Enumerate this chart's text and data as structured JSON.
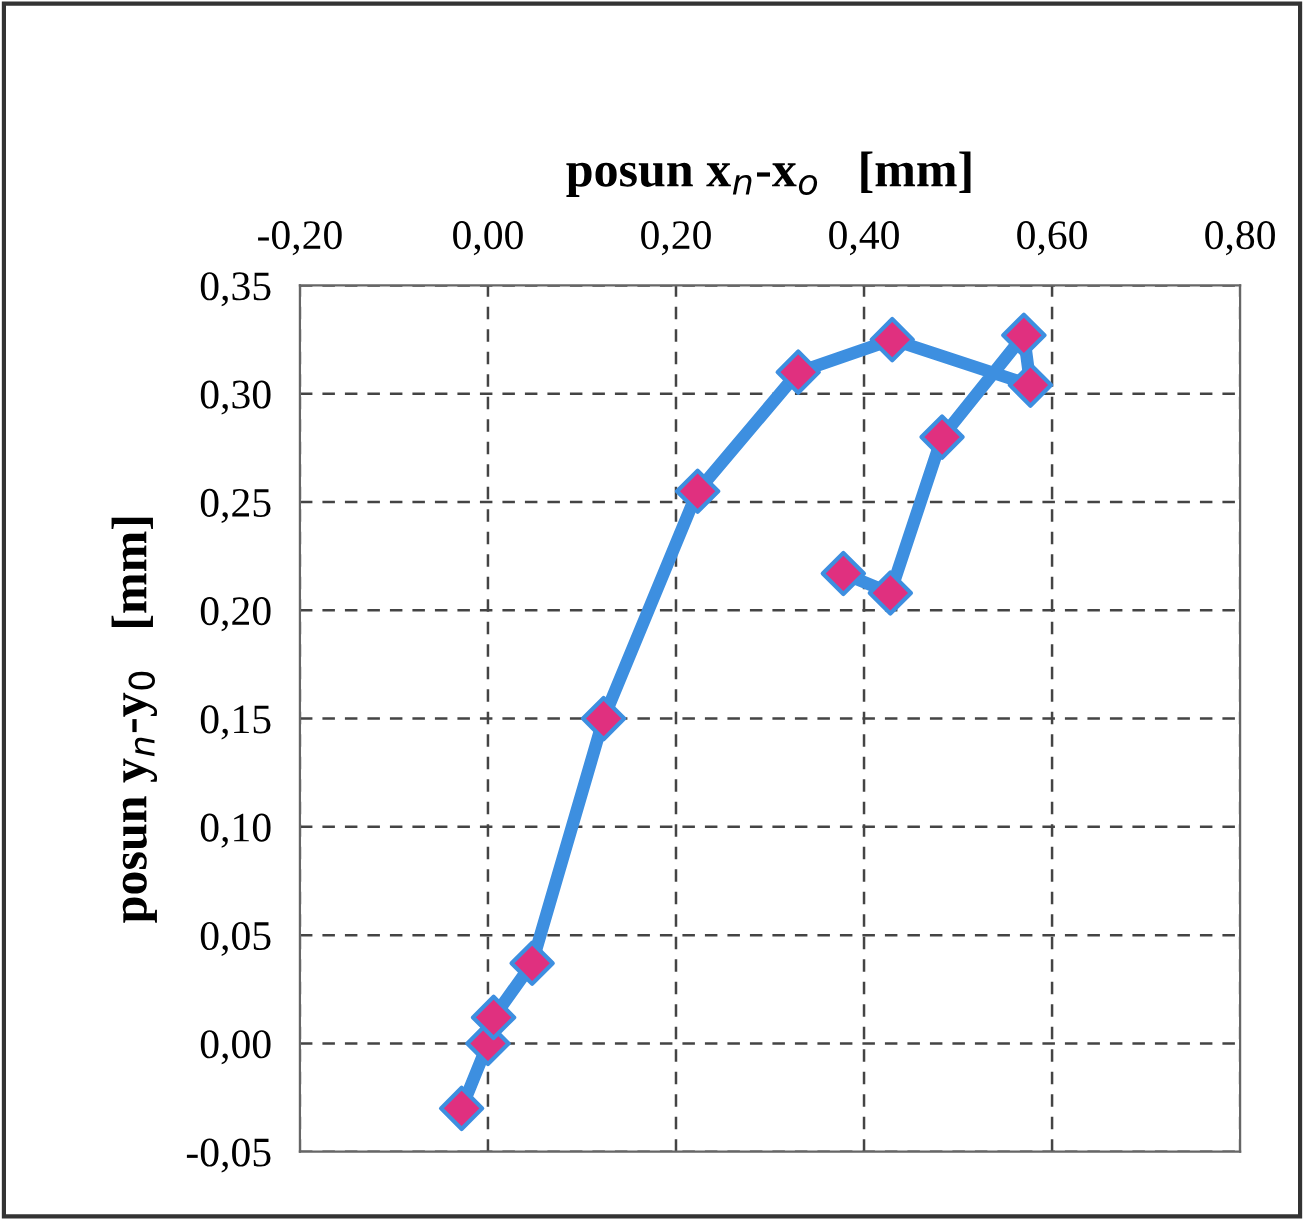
{
  "chart_data": {
    "type": "line",
    "xlabel": "posun x$_{n}$-x$_{o}$   [mm]",
    "ylabel": "posun y$_{n}$-y$_{0}$   [mm]",
    "series": [
      {
        "color": "#3d8fe0",
        "colors": [
          "#e0307f",
          "#e0307f",
          "#e0307f",
          "#e0307f",
          "#e0307f",
          "#e0307f",
          "#e0307f",
          "#e0307f",
          "#e0307f",
          "#e0307f",
          "#e0307f",
          "#e0307f",
          "#e0307f"
        ],
        "x": [
          -0.028,
          0.0,
          0.006,
          0.047,
          0.123,
          0.223,
          0.33,
          0.43,
          0.577,
          0.57,
          0.483,
          0.428,
          0.378
        ],
        "values": [
          -0.03,
          0.0,
          0.012,
          0.037,
          0.15,
          0.255,
          0.31,
          0.325,
          0.304,
          0.327,
          0.28,
          0.208,
          0.217
        ]
      }
    ],
    "marker": "diamond",
    "line_style": "solid",
    "grid": true,
    "xlim": [
      -0.2,
      0.8
    ],
    "xticks": [
      {
        "value": -0.2,
        "label": "-0,20"
      },
      {
        "value": 0.0,
        "label": "0,00"
      },
      {
        "value": 0.2,
        "label": "0,20"
      },
      {
        "value": 0.4,
        "label": "0,40"
      },
      {
        "value": 0.6,
        "label": "0,60"
      },
      {
        "value": 0.8,
        "label": "0,80"
      }
    ],
    "ylim": [
      -0.05,
      0.35
    ],
    "yticks": [
      {
        "value": -0.05,
        "label": "-0,05"
      },
      {
        "value": 0.0,
        "label": "0,00"
      },
      {
        "value": 0.05,
        "label": "0,05"
      },
      {
        "value": 0.1,
        "label": "0,10"
      },
      {
        "value": 0.15,
        "label": "0,15"
      },
      {
        "value": 0.2,
        "label": "0,20"
      },
      {
        "value": 0.25,
        "label": "0,25"
      },
      {
        "value": 0.3,
        "label": "0,30"
      },
      {
        "value": 0.35,
        "label": "0,35"
      }
    ]
  }
}
